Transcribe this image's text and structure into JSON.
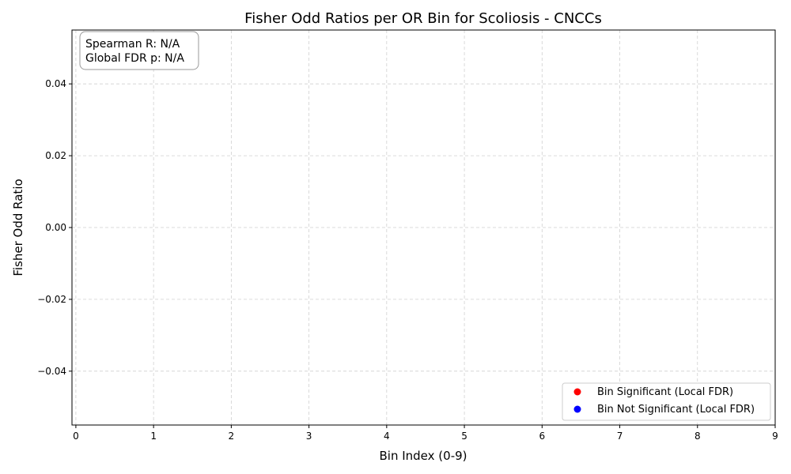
{
  "chart_data": {
    "type": "scatter",
    "title": "Fisher Odd Ratios per OR Bin for Scoliosis - CNCCs",
    "xlabel": "Bin Index (0-9)",
    "ylabel": "Fisher Odd Ratio",
    "xlim": [
      -0.05,
      9
    ],
    "ylim": [
      -0.055,
      0.055
    ],
    "x_ticks": [
      0,
      1,
      2,
      3,
      4,
      5,
      6,
      7,
      8,
      9
    ],
    "x_tick_labels": [
      "0",
      "1",
      "2",
      "3",
      "4",
      "5",
      "6",
      "7",
      "8",
      "9"
    ],
    "y_ticks": [
      -0.04,
      -0.02,
      0.0,
      0.02,
      0.04
    ],
    "y_tick_labels": [
      "−0.04",
      "−0.02",
      "0.00",
      "0.02",
      "0.04"
    ],
    "grid": true,
    "legend_placement": "lower-right",
    "series": [
      {
        "name": "Bin Significant (Local FDR)",
        "color": "#ff0000",
        "points": []
      },
      {
        "name": "Bin Not Significant (Local FDR)",
        "color": "#0000ff",
        "points": []
      }
    ],
    "annotation": {
      "spearman": "Spearman R: N/A",
      "fdr": "Global FDR p: N/A"
    }
  }
}
